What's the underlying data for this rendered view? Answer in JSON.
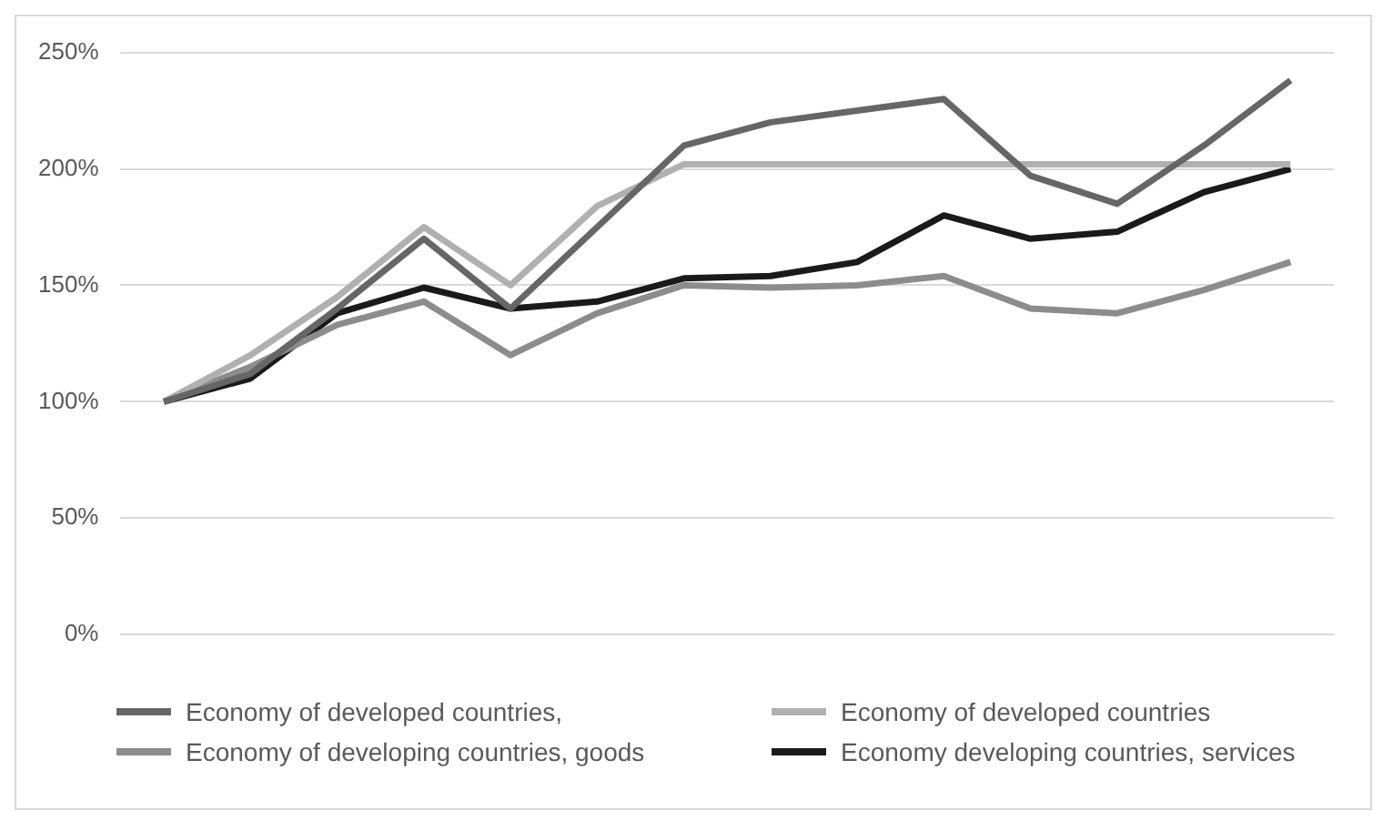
{
  "chart_data": {
    "type": "line",
    "categories": [
      null,
      null,
      null,
      null,
      null,
      null,
      null,
      null,
      null,
      null,
      null,
      null,
      null,
      null
    ],
    "series": [
      {
        "name": "Economy of developed countries,",
        "color": "#666666",
        "values": [
          100,
          112,
          140,
          170,
          140,
          175,
          210,
          220,
          225,
          230,
          197,
          185,
          210,
          238
        ]
      },
      {
        "name": "Economy of developed countries",
        "color": "#b0b0b0",
        "values": [
          100,
          120,
          145,
          175,
          150,
          184,
          202,
          202,
          202,
          202,
          202,
          202,
          202,
          202
        ]
      },
      {
        "name": "Economy of developing countries, goods",
        "color": "#8c8c8c",
        "values": [
          100,
          115,
          133,
          143,
          120,
          138,
          150,
          149,
          150,
          154,
          140,
          138,
          148,
          160
        ]
      },
      {
        "name": "Economy developing countries, services",
        "color": "#1a1a1a",
        "values": [
          100,
          110,
          138,
          149,
          140,
          143,
          153,
          154,
          160,
          180,
          170,
          173,
          190,
          200
        ]
      }
    ],
    "ylim": [
      0,
      250
    ],
    "yticks": [
      {
        "value": 0,
        "label": "0%"
      },
      {
        "value": 50,
        "label": "50%"
      },
      {
        "value": 100,
        "label": "100%"
      },
      {
        "value": 150,
        "label": "150%"
      },
      {
        "value": 200,
        "label": "200%"
      },
      {
        "value": 250,
        "label": "250%"
      }
    ],
    "grid": "y",
    "legend": "bottom",
    "marker": "none",
    "line_style": "solid"
  }
}
